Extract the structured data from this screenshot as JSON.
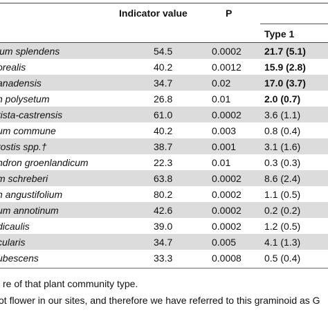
{
  "header": {
    "indicator_value": "Indicator value",
    "p": "P",
    "type1": "Type 1"
  },
  "rows": [
    {
      "species": "ium splendens",
      "indicator": "54.5",
      "p": "0.0002",
      "type1": "21.7 (5.1)",
      "bold": true
    },
    {
      "species": "orealis",
      "indicator": "40.2",
      "p": "0.0012",
      "type1": "15.9 (2.8)",
      "bold": true
    },
    {
      "species": "anadensis",
      "indicator": "34.7",
      "p": "0.02",
      "type1": "17.0 (3.7)",
      "bold": true
    },
    {
      "species": "n polysetum",
      "indicator": "26.8",
      "p": "0.01",
      "type1": "2.0 (0.7)",
      "bold": true
    },
    {
      "species": "rista-castrensis",
      "indicator": "61.0",
      "p": "0.0002",
      "type1": "3.6 (1.1)",
      "bold": false
    },
    {
      "species": "um commune",
      "indicator": "40.2",
      "p": "0.003",
      "type1": "0.8 (0.4)",
      "bold": false
    },
    {
      "species": "rostis spp.†",
      "indicator": "38.7",
      "p": "0.001",
      "type1": "3.1 (1.6)",
      "bold": false
    },
    {
      "species": "ndron groenlandicum",
      "indicator": "22.3",
      "p": "0.01",
      "type1": "0.3 (0.3)",
      "bold": false
    },
    {
      "species": "m schreberi",
      "indicator": "63.8",
      "p": "0.0002",
      "type1": "8.6 (2.4)",
      "bold": false
    },
    {
      "species": "n angustifolium",
      "indicator": "80.2",
      "p": "0.0002",
      "type1": "1.1 (0.5)",
      "bold": false
    },
    {
      "species": "um annotinum",
      "indicator": "42.6",
      "p": "0.0002",
      "type1": "0.2 (0.2)",
      "bold": false
    },
    {
      "species": "dicaulis",
      "indicator": "39.0",
      "p": "0.0002",
      "type1": "1.2 (0.5)",
      "bold": false
    },
    {
      "species": "cularis",
      "indicator": "34.7",
      "p": "0.005",
      "type1": "4.1 (1.3)",
      "bold": false
    },
    {
      "species": "ubescens",
      "indicator": "33.3",
      "p": "0.0008",
      "type1": "0.5 (0.4)",
      "bold": false
    }
  ],
  "footnotes": [
    "re of that plant community type.",
    "ot flower in our sites, and therefore we have referred to this graminoid as G"
  ]
}
